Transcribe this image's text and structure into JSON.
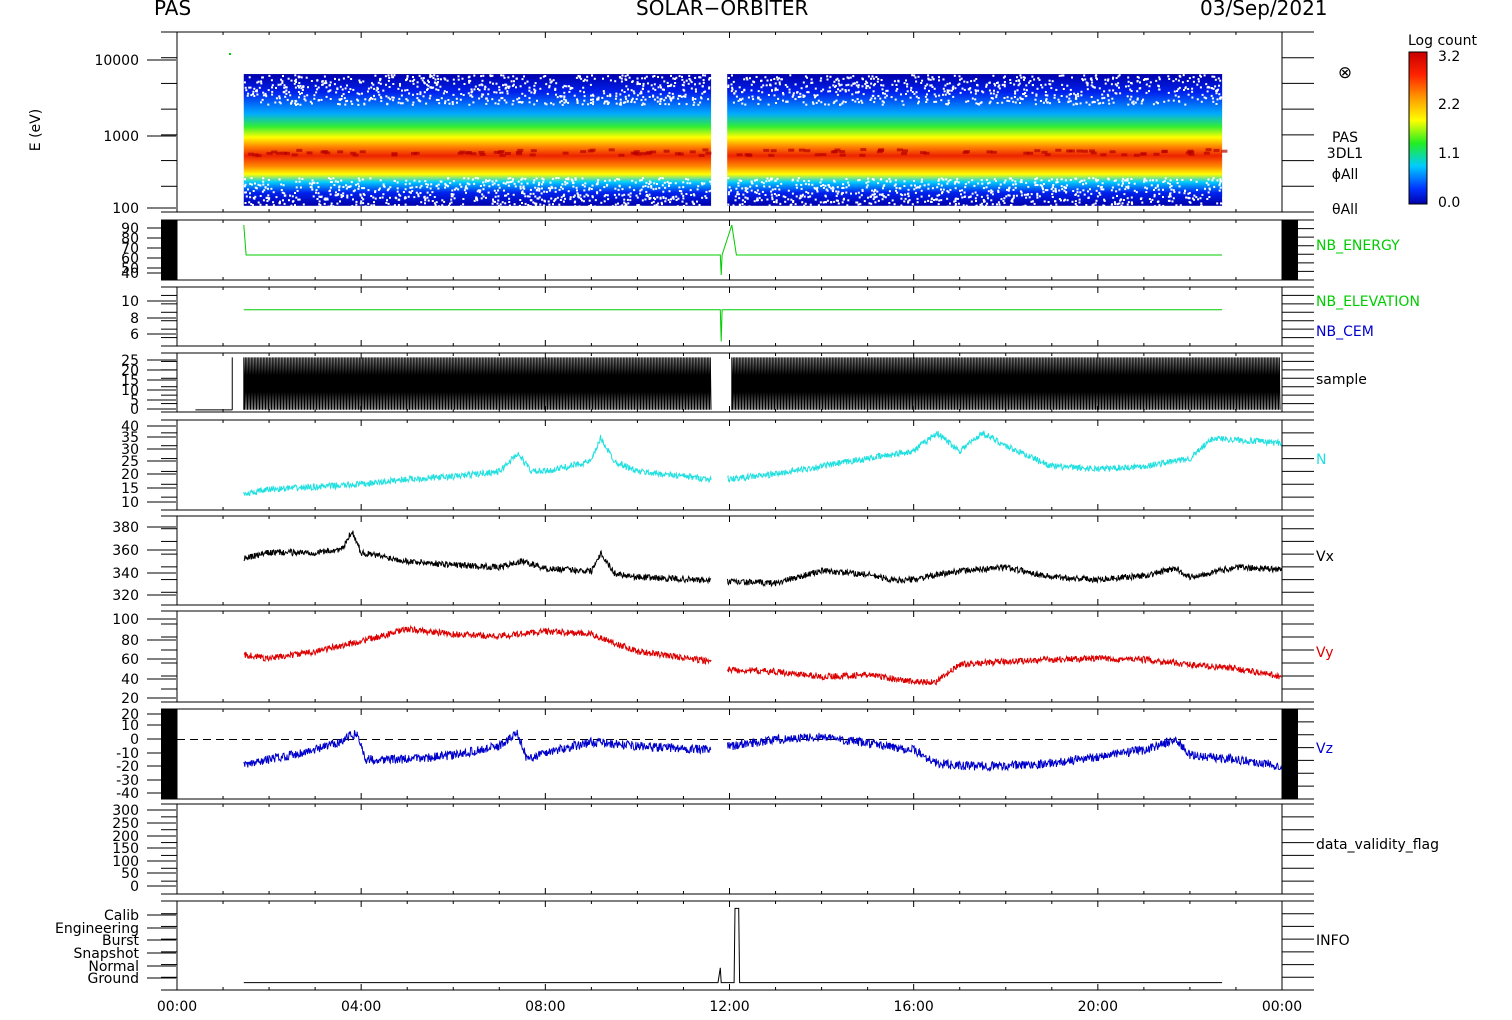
{
  "header": {
    "left": "PAS",
    "center": "SOLAR−ORBITER",
    "right": "03/Sep/2021"
  },
  "colorbar": {
    "title": "Log count",
    "ticks": [
      "3.2",
      "2.2",
      "1.1",
      "0.0"
    ],
    "stops": [
      "#ff0000",
      "#ff8800",
      "#ffff00",
      "#22ee22",
      "#00ccff",
      "#0033ff",
      "#0000aa"
    ]
  },
  "chart_data": {
    "type": "line",
    "x_unit": "hours of day (UT)",
    "x_ticks": [
      "00:00",
      "04:00",
      "08:00",
      "12:00",
      "16:00",
      "20:00",
      "00:00"
    ],
    "x_range": [
      0,
      24
    ],
    "data_coverage": {
      "start": 1.45,
      "end": 24.0,
      "gap": [
        11.6,
        11.95
      ]
    },
    "panels": [
      {
        "id": "spectrogram",
        "type": "heatmap",
        "ylabel": "E (eV)",
        "yscale": "log",
        "ylim": [
          100,
          20000
        ],
        "yticks": [
          "10000",
          "1000",
          "100"
        ],
        "right_labels": [
          "PAS",
          "3DL1",
          "ϕAll",
          "θAll"
        ],
        "symbol": "⊗",
        "peak_energy_eV": 600,
        "x_end": 22.7
      },
      {
        "id": "nb_energy",
        "ylim": [
          35,
          95
        ],
        "yticks": [
          "90",
          "80",
          "70",
          "60",
          "50",
          "40"
        ],
        "series": [
          {
            "name": "NB_ENERGY",
            "color": "#00cc00",
            "points": [
              [
                1.45,
                90
              ],
              [
                1.5,
                60
              ],
              [
                11.8,
                60
              ],
              [
                11.82,
                40
              ],
              [
                11.84,
                60
              ],
              [
                12.05,
                90
              ],
              [
                12.15,
                60
              ],
              [
                22.7,
                60
              ]
            ]
          }
        ]
      },
      {
        "id": "nb_elevation",
        "ylim": [
          5,
          11.5
        ],
        "yticks": [
          "10",
          "8",
          "6"
        ],
        "series": [
          {
            "name": "NB_ELEVATION",
            "color": "#00cc00",
            "points": [
              [
                1.45,
                9
              ],
              [
                11.8,
                9
              ],
              [
                11.82,
                5.5
              ],
              [
                11.84,
                9
              ],
              [
                22.7,
                9
              ]
            ]
          },
          {
            "name": "NB_CEM",
            "color": "#0000cc",
            "points": []
          }
        ]
      },
      {
        "id": "sample",
        "ylim": [
          -1,
          26
        ],
        "yticks": [
          "25",
          "20",
          "15",
          "10",
          "5",
          "0"
        ],
        "series": [
          {
            "name": "sample",
            "color": "#000000",
            "oscillating_between": [
              0,
              24
            ]
          }
        ]
      },
      {
        "id": "density",
        "ylim": [
          5,
          40
        ],
        "yticks": [
          "40",
          "35",
          "30",
          "25",
          "20",
          "15",
          "10"
        ],
        "series": [
          {
            "name": "N",
            "color": "#22e0e0",
            "points": [
              [
                1.45,
                11
              ],
              [
                2,
                13
              ],
              [
                3,
                14
              ],
              [
                4,
                15
              ],
              [
                5,
                17
              ],
              [
                6,
                18
              ],
              [
                7,
                20
              ],
              [
                7.4,
                27
              ],
              [
                7.7,
                20
              ],
              [
                8,
                20
              ],
              [
                9,
                24
              ],
              [
                9.2,
                33
              ],
              [
                9.5,
                24
              ],
              [
                10,
                20
              ],
              [
                11.6,
                17
              ],
              [
                12,
                17
              ],
              [
                13,
                19
              ],
              [
                14,
                22
              ],
              [
                15,
                25
              ],
              [
                16,
                28
              ],
              [
                16.5,
                35
              ],
              [
                17,
                28
              ],
              [
                17.5,
                35
              ],
              [
                18,
                30
              ],
              [
                19,
                22
              ],
              [
                20,
                21
              ],
              [
                21,
                22
              ],
              [
                22,
                25
              ],
              [
                22.5,
                33
              ],
              [
                24,
                31
              ]
            ]
          }
        ]
      },
      {
        "id": "vx",
        "ylim": [
          312,
          385
        ],
        "yticks": [
          "380",
          "360",
          "340",
          "320"
        ],
        "series": [
          {
            "name": "Vx",
            "color": "#000000",
            "points": [
              [
                1.45,
                350
              ],
              [
                2,
                355
              ],
              [
                3,
                355
              ],
              [
                3.6,
                358
              ],
              [
                3.8,
                373
              ],
              [
                4,
                355
              ],
              [
                5,
                348
              ],
              [
                6,
                345
              ],
              [
                7,
                343
              ],
              [
                7.5,
                348
              ],
              [
                8,
                342
              ],
              [
                9,
                340
              ],
              [
                9.2,
                355
              ],
              [
                9.5,
                338
              ],
              [
                10,
                335
              ],
              [
                11.6,
                332
              ],
              [
                12,
                331
              ],
              [
                13,
                330
              ],
              [
                14,
                340
              ],
              [
                15,
                337
              ],
              [
                15.6,
                332
              ],
              [
                16,
                333
              ],
              [
                17,
                340
              ],
              [
                18,
                343
              ],
              [
                19,
                335
              ],
              [
                20,
                333
              ],
              [
                21,
                336
              ],
              [
                21.7,
                342
              ],
              [
                22,
                335
              ],
              [
                23,
                343
              ],
              [
                24,
                341
              ]
            ]
          }
        ]
      },
      {
        "id": "vy",
        "ylim": [
          15,
          105
        ],
        "yticks": [
          "100",
          "80",
          "60",
          "40",
          "20"
        ],
        "series": [
          {
            "name": "Vy",
            "color": "#dd0000",
            "points": [
              [
                1.45,
                62
              ],
              [
                2,
                58
              ],
              [
                3,
                65
              ],
              [
                4,
                75
              ],
              [
                5,
                87
              ],
              [
                6,
                82
              ],
              [
                7,
                80
              ],
              [
                8,
                85
              ],
              [
                9,
                82
              ],
              [
                10,
                65
              ],
              [
                11.6,
                55
              ],
              [
                12,
                47
              ],
              [
                13,
                45
              ],
              [
                14,
                40
              ],
              [
                15,
                42
              ],
              [
                16,
                35
              ],
              [
                16.5,
                35
              ],
              [
                17,
                52
              ],
              [
                18,
                55
              ],
              [
                19,
                57
              ],
              [
                20,
                58
              ],
              [
                21,
                57
              ],
              [
                22,
                52
              ],
              [
                23,
                48
              ],
              [
                24,
                40
              ]
            ]
          }
        ]
      },
      {
        "id": "vz",
        "ylim": [
          -45,
          23
        ],
        "yticks": [
          "20",
          "10",
          "0",
          "-10",
          "-20",
          "-30",
          "-40"
        ],
        "zero_line": true,
        "series": [
          {
            "name": "Vz",
            "color": "#0000cc",
            "points": [
              [
                1.45,
                -20
              ],
              [
                2,
                -15
              ],
              [
                3,
                -8
              ],
              [
                3.5,
                -2
              ],
              [
                3.9,
                5
              ],
              [
                4.1,
                -15
              ],
              [
                5,
                -15
              ],
              [
                6,
                -12
              ],
              [
                7,
                -5
              ],
              [
                7.4,
                5
              ],
              [
                7.6,
                -15
              ],
              [
                8,
                -10
              ],
              [
                9,
                -2
              ],
              [
                10,
                -5
              ],
              [
                11.6,
                -8
              ],
              [
                12,
                -5
              ],
              [
                13,
                0
              ],
              [
                14,
                2
              ],
              [
                15,
                -3
              ],
              [
                16,
                -8
              ],
              [
                16.5,
                -18
              ],
              [
                17,
                -20
              ],
              [
                18,
                -20
              ],
              [
                19,
                -18
              ],
              [
                20,
                -13
              ],
              [
                21,
                -8
              ],
              [
                21.7,
                0
              ],
              [
                22,
                -12
              ],
              [
                23,
                -15
              ],
              [
                24,
                -20
              ]
            ]
          }
        ]
      },
      {
        "id": "validity",
        "ylim": [
          -10,
          310
        ],
        "yticks": [
          "300",
          "250",
          "200",
          "150",
          "100",
          "50",
          "0"
        ],
        "series": [
          {
            "name": "data_validity_flag",
            "color": "#000000",
            "points": []
          }
        ]
      },
      {
        "id": "info",
        "ylim": [
          -0.5,
          5.5
        ],
        "yticks": [
          "Calib",
          "Engineering",
          "Burst",
          "Snapshot",
          "Normal",
          "Ground"
        ],
        "series": [
          {
            "name": "INFO",
            "color": "#000000",
            "points": [
              [
                1.45,
                0
              ],
              [
                11.75,
                0
              ],
              [
                11.8,
                1
              ],
              [
                11.82,
                0
              ],
              [
                12.1,
                0
              ],
              [
                12.12,
                5
              ],
              [
                12.2,
                5
              ],
              [
                12.22,
                0
              ],
              [
                22.7,
                0
              ]
            ]
          }
        ]
      }
    ]
  }
}
